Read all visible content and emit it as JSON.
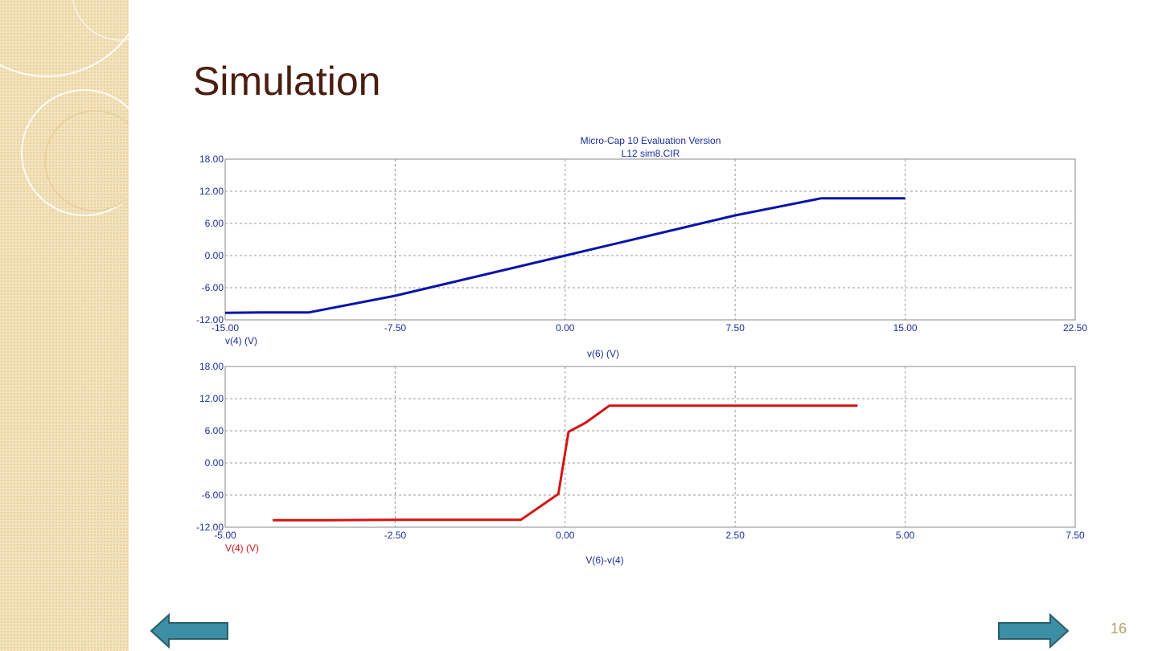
{
  "slide": {
    "title": "Simulation",
    "page_number": "16"
  },
  "nav": {
    "prev_icon": "arrow-left-icon",
    "next_icon": "arrow-right-icon",
    "arrow_color": "#3a8fa4"
  },
  "chart_header": {
    "line1": "Micro-Cap 10 Evaluation Version",
    "line2": "L12 sim8.CIR"
  },
  "chart_data": [
    {
      "type": "line",
      "xlabel": "v(6) (V)",
      "ylabel": "v(4) (V)",
      "xlim": [
        -15,
        22.5
      ],
      "ylim": [
        -12,
        18
      ],
      "xticks": [
        "-15.00",
        "-7.50",
        "0.00",
        "7.50",
        "15.00",
        "22.50"
      ],
      "yticks": [
        "18.00",
        "12.00",
        "6.00",
        "0.00",
        "-6.00",
        "-12.00"
      ],
      "grid": true,
      "series": [
        {
          "color": "#0a14a8",
          "x": [
            -15,
            -13.5,
            -11.3,
            -7.5,
            -3.75,
            0,
            3.75,
            7.5,
            11.3,
            15
          ],
          "y": [
            -10.7,
            -10.6,
            -10.6,
            -7.5,
            -3.75,
            0,
            3.75,
            7.5,
            10.7,
            10.7
          ]
        }
      ]
    },
    {
      "type": "line",
      "xlabel": "V(6)-v(4)",
      "ylabel": "V(4) (V)",
      "xlim": [
        -5,
        7.5
      ],
      "ylim": [
        -12,
        18
      ],
      "xticks": [
        "-5.00",
        "-2.50",
        "0.00",
        "2.50",
        "5.00",
        "7.50"
      ],
      "yticks": [
        "18.00",
        "12.00",
        "6.00",
        "0.00",
        "-6.00",
        "-12.00"
      ],
      "grid": true,
      "series": [
        {
          "color": "#d41414",
          "x": [
            -4.3,
            -3.5,
            -2.5,
            -1.5,
            -0.65,
            -0.1,
            0.05,
            0.3,
            0.65,
            2.5,
            4.3
          ],
          "y": [
            -10.7,
            -10.7,
            -10.6,
            -10.6,
            -10.6,
            -5.8,
            5.8,
            7.5,
            10.7,
            10.7,
            10.7
          ]
        }
      ]
    }
  ]
}
